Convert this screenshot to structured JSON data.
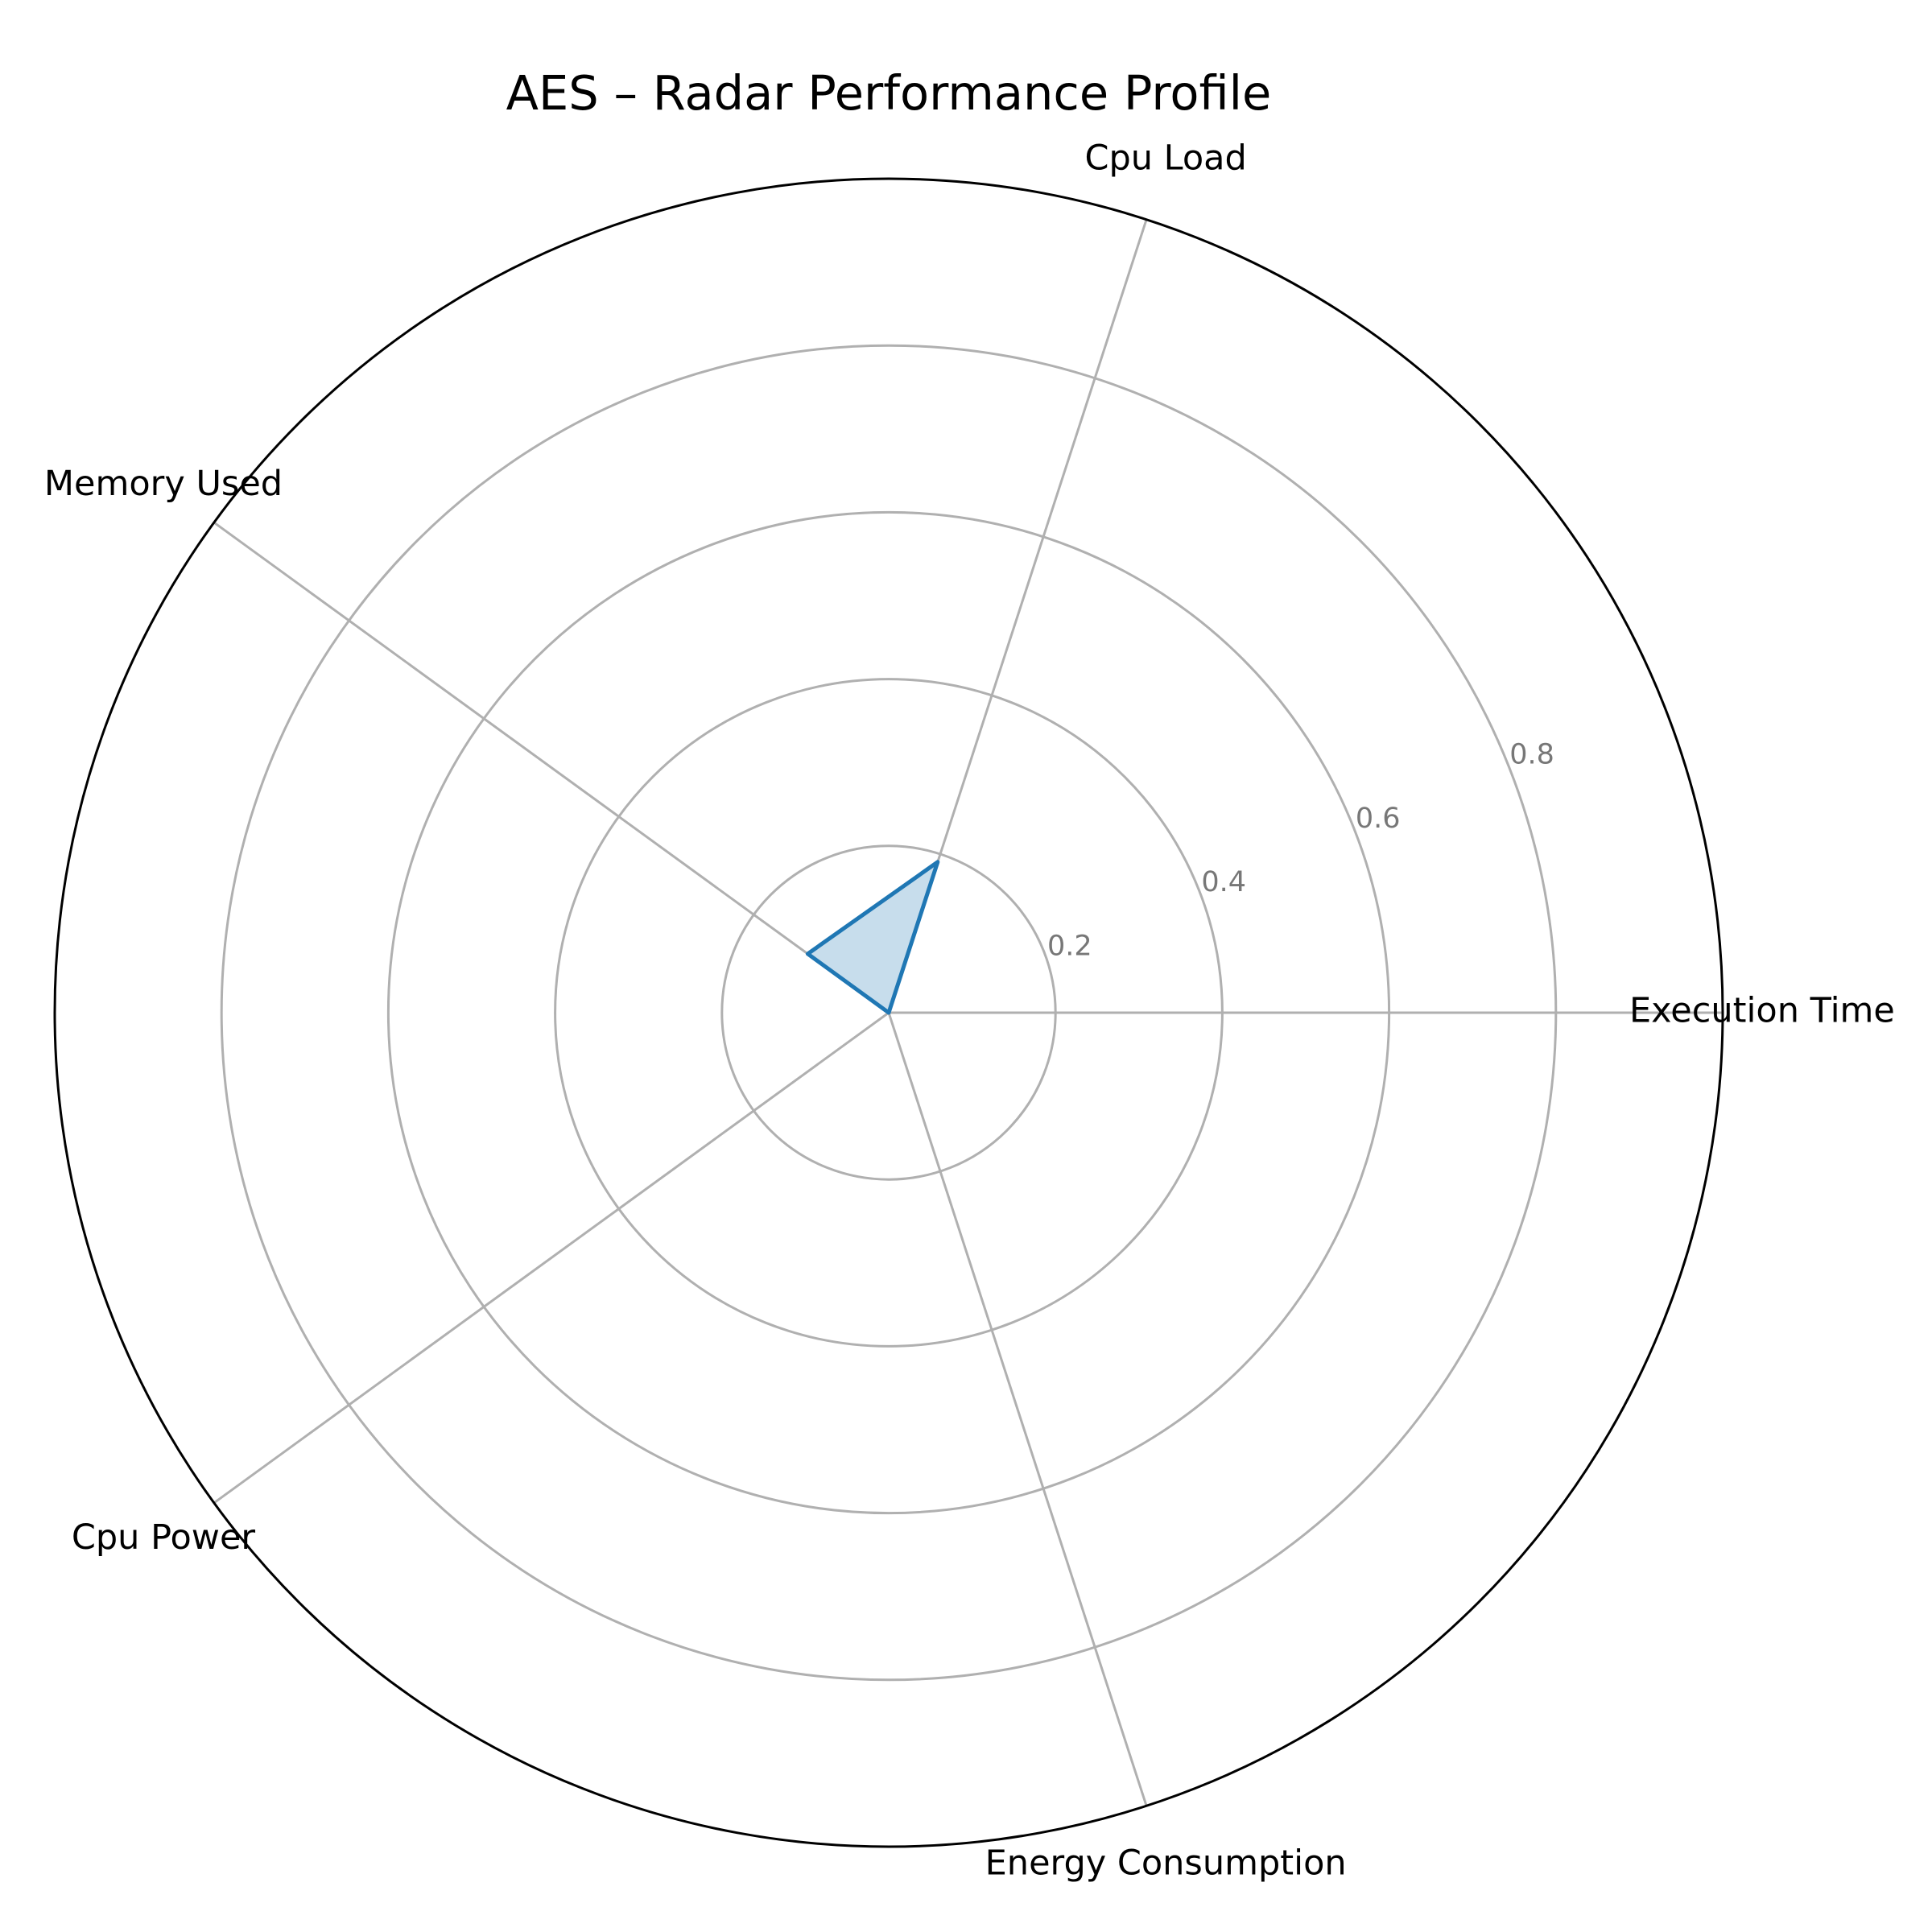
{
  "chart_data": {
    "type": "radar",
    "title": "AES – Radar Performance Profile",
    "axes": [
      "Execution Time",
      "Cpu Load",
      "Memory Used",
      "Cpu Power",
      "Energy Consumption"
    ],
    "series": [
      {
        "values": [
          0.0,
          0.19,
          0.12,
          0.0,
          0.0
        ],
        "color": "#1f77b4"
      }
    ],
    "rlim": [
      0,
      1.0
    ],
    "rticks": [
      0.2,
      0.4,
      0.6,
      0.8
    ],
    "rtick_labels": [
      "0.2",
      "0.4",
      "0.6",
      "0.8"
    ],
    "grid": true
  }
}
